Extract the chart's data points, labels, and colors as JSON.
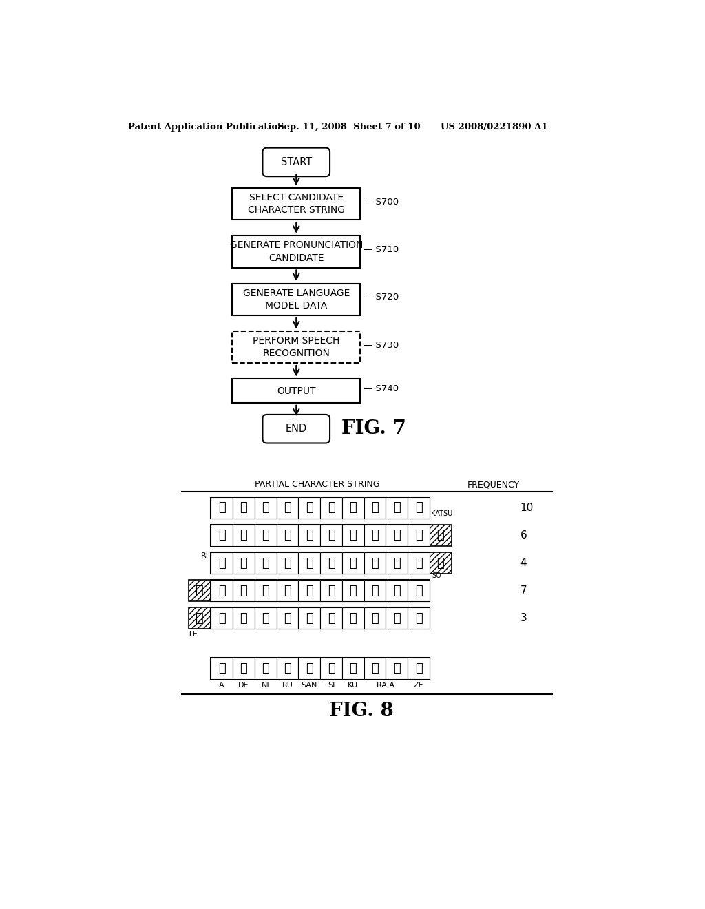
{
  "bg_color": "#ffffff",
  "header_left": "Patent Application Publication",
  "header_mid": "Sep. 11, 2008  Sheet 7 of 10",
  "header_right": "US 2008/0221890 A1",
  "flowchart": {
    "start_label": "START",
    "end_label": "END",
    "boxes": [
      {
        "label": "SELECT CANDIDATE\nCHARACTER STRING",
        "step": "S700",
        "dashed": false
      },
      {
        "label": "GENERATE PRONUNCIATION\nCANDIDATE",
        "step": "S710",
        "dashed": false
      },
      {
        "label": "GENERATE LANGUAGE\nMODEL DATA",
        "step": "S720",
        "dashed": false
      },
      {
        "label": "PERFORM SPEECH\nRECOGNITION",
        "step": "S730",
        "dashed": true
      },
      {
        "label": "OUTPUT",
        "step": "S740",
        "dashed": false
      }
    ]
  },
  "fig7_label": "FIG. 7",
  "fig8_label": "FIG. 8",
  "table_header_left": "PARTIAL CHARACTER STRING",
  "table_header_right": "FREQUENCY",
  "katakana_chars": [
    "ア",
    "デ",
    "ニ",
    "ル",
    "酔",
    "シ",
    "ク",
    "ラ",
    "ー",
    "ゼ"
  ],
  "rows": [
    {
      "extra_left": null,
      "extra_right": null,
      "extra_right_label": "KATSU",
      "frequency": "10",
      "hatch_right": false
    },
    {
      "extra_left": null,
      "extra_right": "活",
      "extra_right_label": null,
      "frequency": "6",
      "hatch_right": true
    },
    {
      "extra_left": null,
      "extra_right": "陰",
      "extra_right_label": null,
      "frequency": "4",
      "hatch_right": true
    },
    {
      "extra_left": "り",
      "extra_right": null,
      "extra_right_label": "SO",
      "frequency": "7",
      "hatch_right": false
    },
    {
      "extra_left": "て",
      "extra_right": null,
      "extra_right_label": null,
      "frequency": "3",
      "hatch_right": false
    }
  ],
  "row_left_labels": [
    "",
    "",
    "RI",
    "",
    ""
  ],
  "row_bottom_label": "TE",
  "bottom_chars": [
    "ア",
    "デ",
    "ニ",
    "ル",
    "酔",
    "シ",
    "ク",
    "ラ",
    "ー",
    "ゼ"
  ],
  "romanji_labels": [
    "A",
    "DE",
    "NI",
    "RU",
    "SAN",
    "SI",
    "KU",
    "RA A",
    "ZE"
  ],
  "romanji_cell_positions": [
    0,
    1,
    2,
    3,
    4,
    5,
    6,
    7.5,
    9
  ]
}
